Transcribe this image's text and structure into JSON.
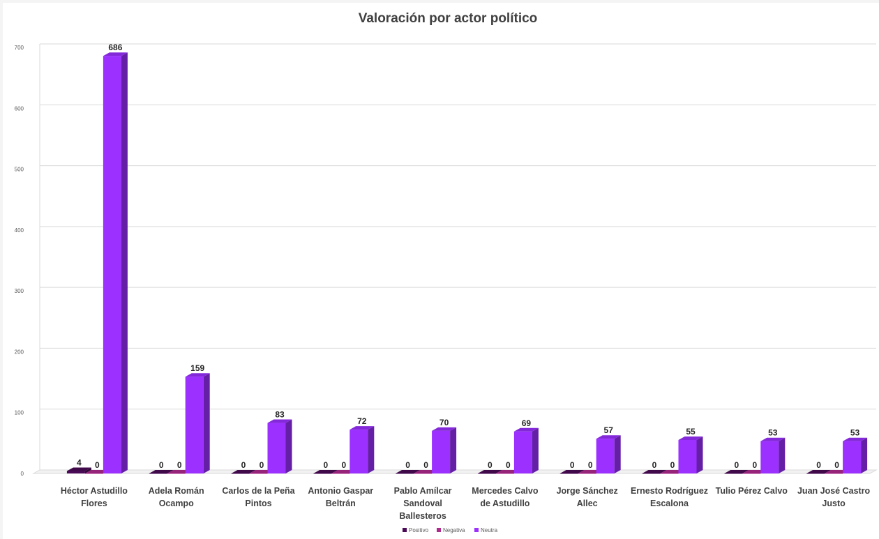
{
  "chart_data": {
    "type": "bar",
    "title": "Valoración por actor político",
    "categories": [
      [
        "Héctor Astudillo",
        "Flores"
      ],
      [
        "Adela  Román",
        "Ocampo"
      ],
      [
        "Carlos de la Peña",
        "Pintos"
      ],
      [
        "Antonio Gaspar",
        "Beltrán"
      ],
      [
        "Pablo Amílcar",
        "Sandoval",
        "Ballesteros"
      ],
      [
        "Mercedes Calvo",
        "de Astudillo"
      ],
      [
        "Jorge Sánchez",
        "Allec"
      ],
      [
        "Ernesto Rodríguez",
        "Escalona"
      ],
      [
        "Tulio Pérez Calvo"
      ],
      [
        "Juan José Castro",
        "Justo"
      ]
    ],
    "series": [
      {
        "name": "Positivo",
        "color": "#4b0a57",
        "values": [
          4,
          0,
          0,
          0,
          0,
          0,
          0,
          0,
          0,
          0
        ]
      },
      {
        "name": "Negativa",
        "color": "#b02a8e",
        "values": [
          0,
          0,
          0,
          0,
          0,
          0,
          0,
          0,
          0,
          0
        ]
      },
      {
        "name": "Neutra",
        "color": "#9b30ff",
        "values": [
          686,
          159,
          83,
          72,
          70,
          69,
          57,
          55,
          53,
          53
        ]
      }
    ],
    "ylim": [
      0,
      700
    ],
    "yticks": [
      0,
      100,
      200,
      300,
      400,
      500,
      600,
      700
    ],
    "grid": true,
    "legend_position": "bottom",
    "style": "3d-column"
  }
}
